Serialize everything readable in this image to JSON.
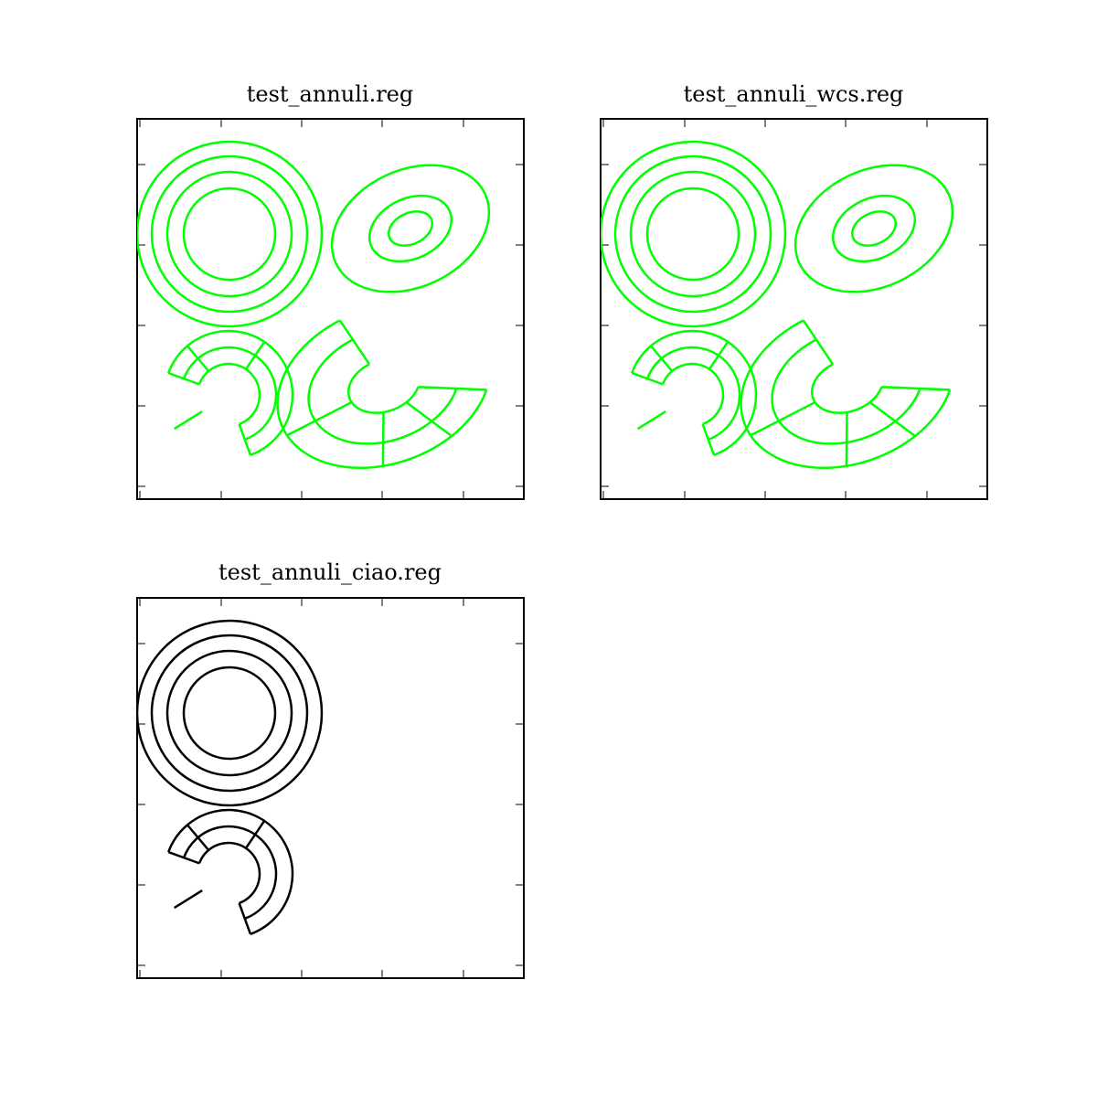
{
  "figure": {
    "panels": [
      {
        "title": "test_annuli.reg",
        "color": "#00ff00",
        "shapes": [
          "annulus",
          "elliptical-annulus",
          "panda",
          "epanda"
        ]
      },
      {
        "title": "test_annuli_wcs.reg",
        "color": "#00ff00",
        "shapes": [
          "annulus",
          "elliptical-annulus",
          "panda",
          "epanda"
        ]
      },
      {
        "title": "test_annuli_ciao.reg",
        "color": "#000000",
        "shapes": [
          "annulus",
          "panda"
        ]
      }
    ]
  }
}
